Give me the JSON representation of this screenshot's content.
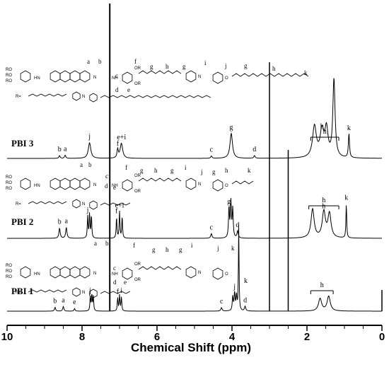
{
  "chart_data": {
    "type": "line",
    "title": "",
    "xlabel": "Chemical Shift (ppm)",
    "ylabel": "",
    "xlim": [
      10,
      0
    ],
    "x_reversed": true,
    "xticks": [
      10,
      8,
      6,
      4,
      2,
      0
    ],
    "grid": false,
    "legend": "none",
    "series": [
      {
        "name": "PBI 1",
        "peaks": [
          {
            "ppm": 8.72,
            "h": 0.1,
            "w": 0.018,
            "label": "b"
          },
          {
            "ppm": 8.5,
            "h": 0.12,
            "w": 0.018,
            "label": "a"
          },
          {
            "ppm": 8.2,
            "h": 0.07,
            "w": 0.015,
            "label": "e"
          },
          {
            "ppm": 7.78,
            "h": 0.36,
            "w": 0.012,
            "label": "j"
          },
          {
            "ppm": 7.74,
            "h": 0.42,
            "w": 0.012,
            "label": ""
          },
          {
            "ppm": 7.7,
            "h": 0.38,
            "w": 0.012,
            "label": ""
          },
          {
            "ppm": 7.05,
            "h": 0.34,
            "w": 0.012,
            "label": "f"
          },
          {
            "ppm": 7.0,
            "h": 0.4,
            "w": 0.012,
            "label": ""
          },
          {
            "ppm": 6.95,
            "h": 0.36,
            "w": 0.012,
            "label": "i"
          },
          {
            "ppm": 4.28,
            "h": 0.09,
            "w": 0.02,
            "label": "c"
          },
          {
            "ppm": 3.98,
            "h": 0.36,
            "w": 0.015,
            "label": ""
          },
          {
            "ppm": 3.93,
            "h": 0.46,
            "w": 0.015,
            "label": "j"
          },
          {
            "ppm": 3.88,
            "h": 0.38,
            "w": 0.015,
            "label": ""
          },
          {
            "ppm": 3.82,
            "h": 2.2,
            "w": 0.01,
            "label": "k"
          },
          {
            "ppm": 3.65,
            "h": 0.12,
            "w": 0.02,
            "label": "d"
          },
          {
            "ppm": 1.65,
            "h": 0.32,
            "w": 0.05,
            "label": ""
          },
          {
            "ppm": 1.42,
            "h": 0.38,
            "w": 0.05,
            "label": ""
          }
        ]
      },
      {
        "name": "PBI 2",
        "peaks": [
          {
            "ppm": 8.6,
            "h": 0.26,
            "w": 0.02,
            "label": "b"
          },
          {
            "ppm": 8.42,
            "h": 0.28,
            "w": 0.02,
            "label": "a"
          },
          {
            "ppm": 7.85,
            "h": 0.56,
            "w": 0.012,
            "label": "j"
          },
          {
            "ppm": 7.8,
            "h": 0.62,
            "w": 0.012,
            "label": ""
          },
          {
            "ppm": 7.75,
            "h": 0.58,
            "w": 0.012,
            "label": ""
          },
          {
            "ppm": 7.08,
            "h": 0.54,
            "w": 0.012,
            "label": "f"
          },
          {
            "ppm": 7.0,
            "h": 0.68,
            "w": 0.012,
            "label": "e+i"
          },
          {
            "ppm": 6.93,
            "h": 0.56,
            "w": 0.012,
            "label": ""
          },
          {
            "ppm": 4.55,
            "h": 0.12,
            "w": 0.02,
            "label": "c"
          },
          {
            "ppm": 4.08,
            "h": 0.78,
            "w": 0.015,
            "label": "g"
          },
          {
            "ppm": 4.03,
            "h": 0.92,
            "w": 0.015,
            "label": ""
          },
          {
            "ppm": 3.98,
            "h": 0.74,
            "w": 0.015,
            "label": ""
          },
          {
            "ppm": 3.85,
            "h": 0.18,
            "w": 0.02,
            "label": "d"
          },
          {
            "ppm": 1.85,
            "h": 0.74,
            "w": 0.05,
            "label": ""
          },
          {
            "ppm": 1.55,
            "h": 0.66,
            "w": 0.05,
            "label": "h"
          },
          {
            "ppm": 1.4,
            "h": 0.62,
            "w": 0.05,
            "label": ""
          },
          {
            "ppm": 0.95,
            "h": 0.88,
            "w": 0.012,
            "label": "k"
          }
        ]
      },
      {
        "name": "PBI 3",
        "peaks": [
          {
            "ppm": 8.6,
            "h": 0.07,
            "w": 0.02,
            "label": "b"
          },
          {
            "ppm": 8.45,
            "h": 0.08,
            "w": 0.02,
            "label": "a"
          },
          {
            "ppm": 7.8,
            "h": 0.4,
            "w": 0.04,
            "label": "j"
          },
          {
            "ppm": 7.05,
            "h": 0.22,
            "w": 0.02,
            "label": "f"
          },
          {
            "ppm": 6.95,
            "h": 0.38,
            "w": 0.04,
            "label": "e+i"
          },
          {
            "ppm": 4.55,
            "h": 0.06,
            "w": 0.02,
            "label": "c"
          },
          {
            "ppm": 4.02,
            "h": 0.64,
            "w": 0.04,
            "label": "g"
          },
          {
            "ppm": 3.4,
            "h": 0.07,
            "w": 0.02,
            "label": "d"
          },
          {
            "ppm": 1.8,
            "h": 0.8,
            "w": 0.06,
            "label": ""
          },
          {
            "ppm": 1.6,
            "h": 0.66,
            "w": 0.06,
            "label": "h"
          },
          {
            "ppm": 1.48,
            "h": 0.7,
            "w": 0.05,
            "label": ""
          },
          {
            "ppm": 1.28,
            "h": 2.0,
            "w": 0.035,
            "label": ""
          },
          {
            "ppm": 0.88,
            "h": 0.62,
            "w": 0.018,
            "label": "k"
          }
        ]
      }
    ],
    "solvent_lines": [
      {
        "ppm": 7.26
      },
      {
        "ppm": 3.0
      },
      {
        "ppm": 2.5
      },
      {
        "ppm": 0.0
      }
    ],
    "labels": {
      "h": "h",
      "k": "k",
      "e_i": "e+i"
    },
    "structure_text": {
      "ro": "RO",
      "or": "OR",
      "r_eq": "R=",
      "hn": "HN",
      "nh": "NH",
      "n": "N",
      "o": "O",
      "letters": [
        "a",
        "b",
        "c",
        "d",
        "e",
        "f",
        "g",
        "h",
        "g",
        "i",
        "j",
        "k"
      ]
    }
  }
}
